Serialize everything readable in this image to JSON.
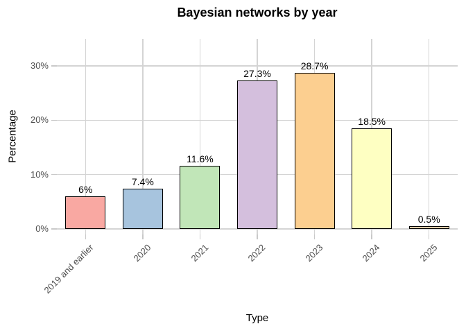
{
  "chart_data": {
    "type": "bar",
    "title": "Bayesian networks by year",
    "xlabel": "Type",
    "ylabel": "Percentage",
    "categories": [
      "2019 and earlier",
      "2020",
      "2021",
      "2022",
      "2023",
      "2024",
      "2025"
    ],
    "values": [
      6,
      7.4,
      11.6,
      27.3,
      28.7,
      18.5,
      0.5
    ],
    "value_labels": [
      "6%",
      "7.4%",
      "11.6%",
      "27.3%",
      "28.7%",
      "18.5%",
      "0.5%"
    ],
    "bar_colors": [
      "#F9A8A2",
      "#A7C4DE",
      "#C1E6B8",
      "#D4BFDD",
      "#FCCF90",
      "#FEFFC2",
      "#E0CDA9"
    ],
    "bar_border_color": "#000000",
    "ylim": [
      0,
      30
    ],
    "yticks": [
      0,
      10,
      20,
      30
    ],
    "ytick_labels": [
      "0%",
      "10%",
      "20%",
      "30%"
    ],
    "grid": true,
    "grid_color": "#D4D4D4",
    "tick_color": "#C9C9C9",
    "axis_text_color": "#4D4D4D",
    "x_label_angle_deg": 45,
    "legend_position": "none"
  }
}
